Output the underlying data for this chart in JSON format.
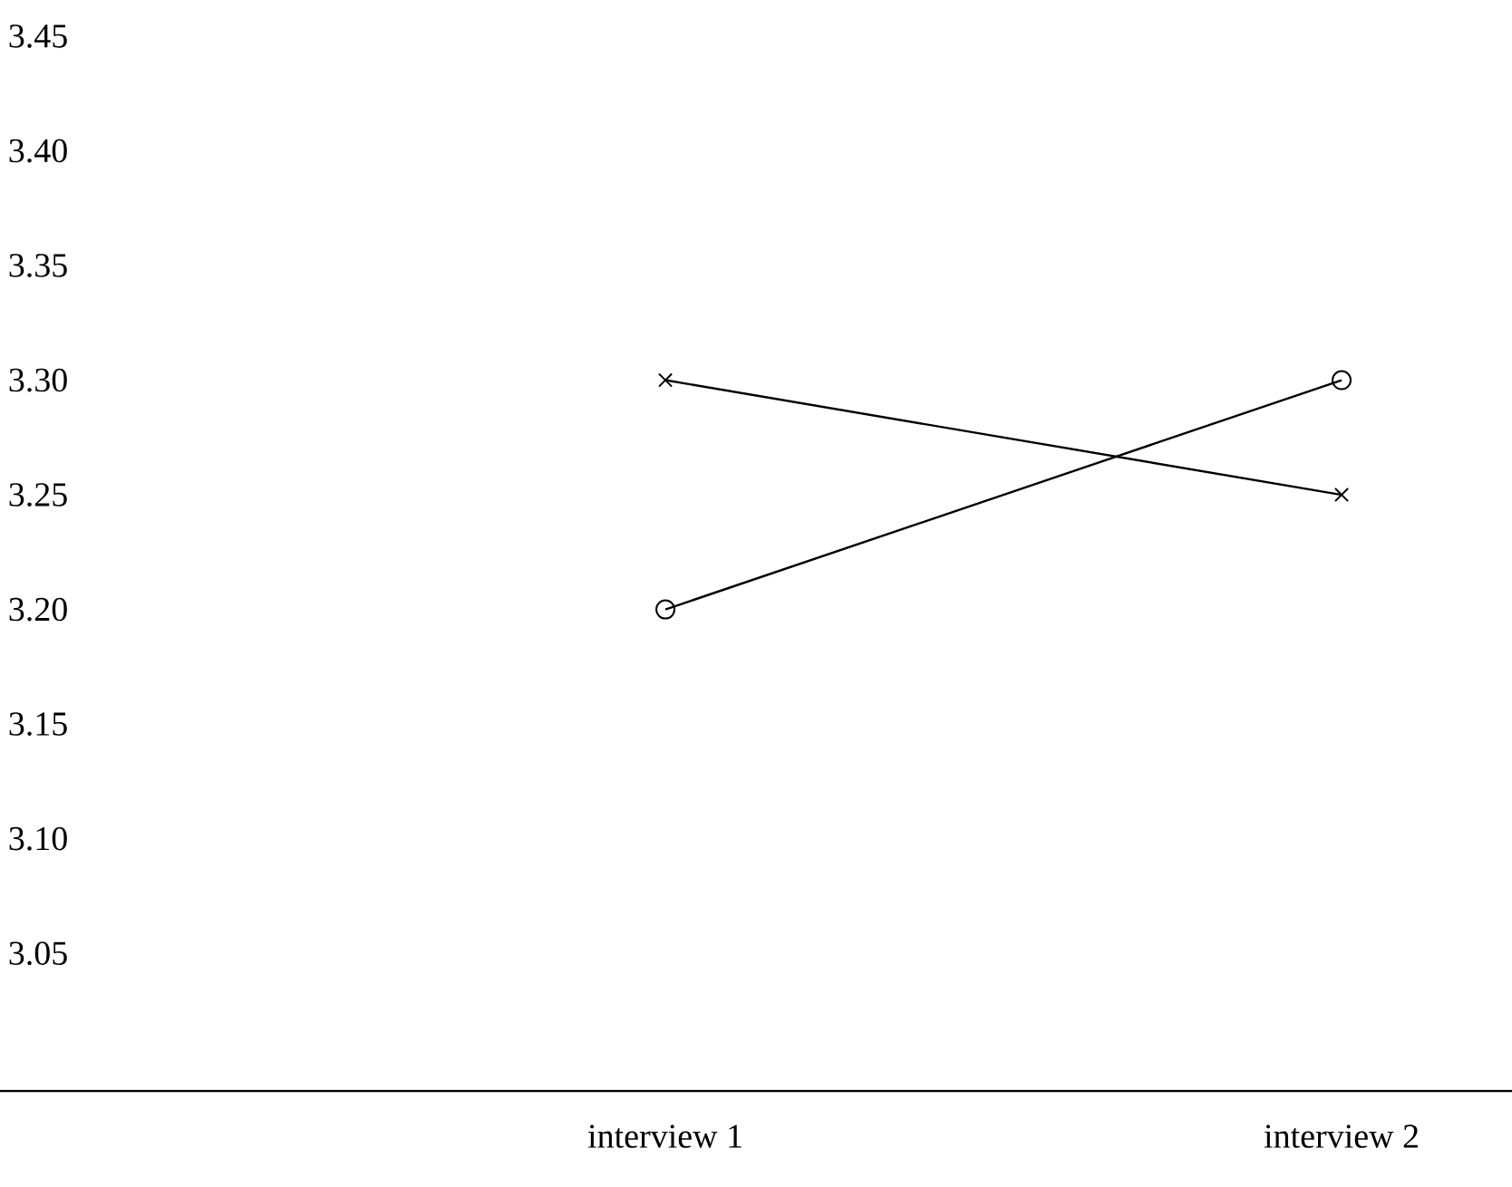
{
  "chart_data": {
    "type": "line",
    "categories": [
      "interview 1",
      "interview 2"
    ],
    "series": [
      {
        "color": "#000000",
        "marker": "cross",
        "values": [
          3.3,
          3.25
        ]
      },
      {
        "color": "#000000",
        "marker": "circle",
        "values": [
          3.2,
          3.3
        ]
      }
    ],
    "ylim": [
      2.99,
      3.45
    ],
    "yticks": [
      3.05,
      {
        "value": 3.1,
        "label": "3.10"
      },
      3.15,
      {
        "value": 3.2,
        "label": "3.20"
      },
      3.25,
      {
        "value": 3.3,
        "label": "3.30"
      },
      3.35,
      {
        "value": 3.4,
        "label": "3.40"
      },
      3.45
    ],
    "grid": false,
    "line_style": "solid"
  }
}
